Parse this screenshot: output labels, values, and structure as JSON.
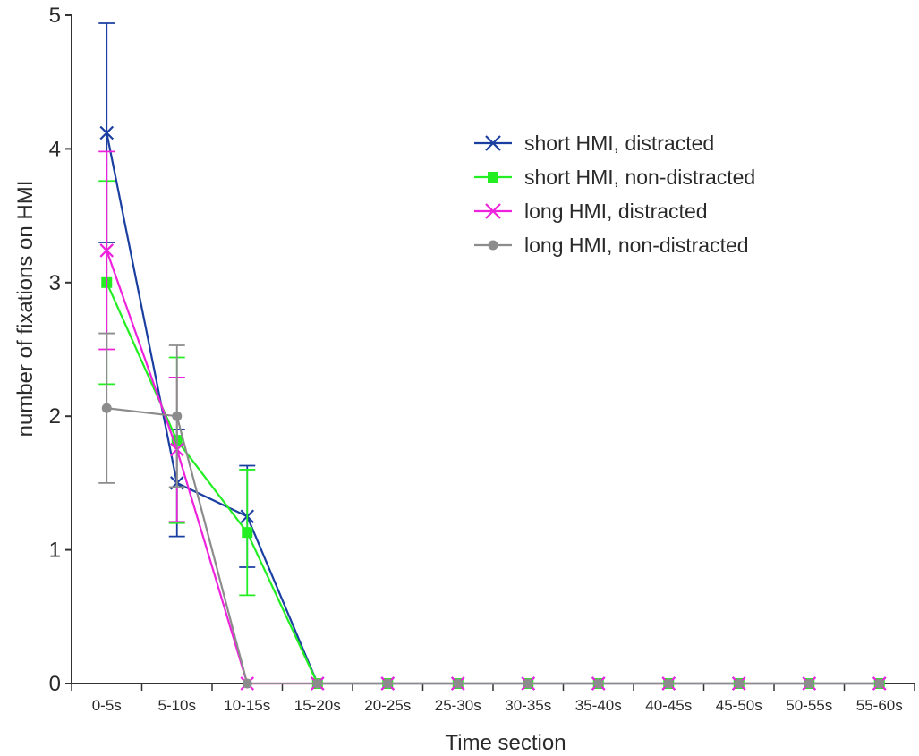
{
  "chart_data": {
    "type": "line",
    "title": "",
    "xlabel": "Time section",
    "ylabel": "number of fixations on HMI",
    "ylim": [
      0,
      5
    ],
    "yticks": [
      "0",
      "1",
      "2",
      "3",
      "4",
      "5"
    ],
    "categories": [
      "0-5s",
      "5-10s",
      "10-15s",
      "15-20s",
      "20-25s",
      "25-30s",
      "30-35s",
      "35-40s",
      "40-45s",
      "45-50s",
      "50-55s",
      "55-60s"
    ],
    "grid": false,
    "legend_position": "top-right",
    "series": [
      {
        "name": "short HMI, distracted",
        "color": "#1a3fa0",
        "marker": "x",
        "values": [
          4.12,
          1.5,
          1.25,
          0,
          0,
          0,
          0,
          0,
          0,
          0,
          0,
          0
        ],
        "error": [
          0.82,
          0.4,
          0.38,
          0,
          0,
          0,
          0,
          0,
          0,
          0,
          0,
          0
        ]
      },
      {
        "name": "short HMI, non-distracted",
        "color": "#22ee22",
        "marker": "square",
        "values": [
          3.0,
          1.82,
          1.13,
          0,
          0,
          0,
          0,
          0,
          0,
          0,
          0,
          0
        ],
        "error": [
          0.76,
          0.62,
          0.47,
          0,
          0,
          0,
          0,
          0,
          0,
          0,
          0,
          0
        ]
      },
      {
        "name": "long HMI, distracted",
        "color": "#ee22dd",
        "marker": "x",
        "values": [
          3.24,
          1.75,
          0,
          0,
          0,
          0,
          0,
          0,
          0,
          0,
          0,
          0
        ],
        "error": [
          0.74,
          0.54,
          0,
          0,
          0,
          0,
          0,
          0,
          0,
          0,
          0,
          0
        ]
      },
      {
        "name": "long HMI, non-distracted",
        "color": "#8c8c8c",
        "marker": "circle",
        "values": [
          2.06,
          2.0,
          0,
          0,
          0,
          0,
          0,
          0,
          0,
          0,
          0,
          0
        ],
        "error": [
          0.56,
          0.53,
          0,
          0,
          0,
          0,
          0,
          0,
          0,
          0,
          0,
          0
        ]
      }
    ]
  }
}
